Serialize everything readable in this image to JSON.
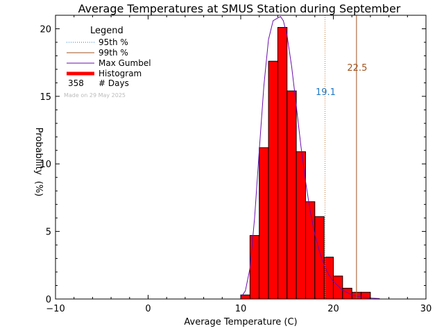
{
  "chart_data": {
    "type": "bar",
    "title": "Average Temperatures at SMUS Station during September",
    "xlabel": "Average Temperature (C)",
    "ylabel": "Probability",
    "ylabel_unit": "(%)",
    "xlim": [
      -10,
      30
    ],
    "ylim": [
      0,
      21
    ],
    "x_ticks": [
      -10,
      0,
      10,
      20,
      30
    ],
    "y_ticks": [
      0,
      5,
      10,
      15,
      20
    ],
    "histogram": {
      "name": "Histogram",
      "color": "#ff0000",
      "bins": [
        {
          "x0": 10,
          "x1": 11,
          "value": 0.3
        },
        {
          "x0": 11,
          "x1": 12,
          "value": 4.7
        },
        {
          "x0": 12,
          "x1": 13,
          "value": 11.2
        },
        {
          "x0": 13,
          "x1": 14,
          "value": 17.6
        },
        {
          "x0": 14,
          "x1": 15,
          "value": 20.1
        },
        {
          "x0": 15,
          "x1": 16,
          "value": 15.4
        },
        {
          "x0": 16,
          "x1": 17,
          "value": 10.9
        },
        {
          "x0": 17,
          "x1": 18,
          "value": 7.2
        },
        {
          "x0": 18,
          "x1": 19,
          "value": 6.1
        },
        {
          "x0": 19,
          "x1": 20,
          "value": 3.1
        },
        {
          "x0": 20,
          "x1": 21,
          "value": 1.7
        },
        {
          "x0": 21,
          "x1": 22,
          "value": 0.8
        },
        {
          "x0": 22,
          "x1": 23,
          "value": 0.5
        },
        {
          "x0": 23,
          "x1": 24,
          "value": 0.5
        }
      ]
    },
    "gumbel_fit": {
      "name": "Max Gumbel",
      "color": "#6a0dad",
      "x": [
        10,
        10.5,
        11,
        11.5,
        12,
        12.5,
        13,
        13.5,
        14,
        14.3,
        14.6,
        15,
        15.5,
        16,
        16.5,
        17,
        17.5,
        18,
        18.5,
        19,
        19.5,
        20,
        21,
        22,
        23,
        24,
        25
      ],
      "y": [
        0.1,
        0.6,
        2.3,
        6.0,
        11.0,
        15.8,
        19.2,
        20.6,
        20.8,
        20.9,
        20.6,
        19.5,
        17.2,
        14.3,
        11.3,
        8.7,
        6.5,
        4.8,
        3.5,
        2.5,
        1.8,
        1.3,
        0.65,
        0.3,
        0.15,
        0.07,
        0.03
      ]
    },
    "percentiles": [
      {
        "name": "95th %",
        "value": 19.1,
        "label": "19.1",
        "style": "dotted",
        "color": "#c87a3c",
        "label_color": "#1e78c8"
      },
      {
        "name": "99th %",
        "value": 22.5,
        "label": "22.5",
        "style": "solid",
        "color": "#a0521e",
        "label_color": "#a0521e"
      }
    ],
    "legend": {
      "title": "Legend",
      "placement": "top-left",
      "entries": [
        {
          "label": "95th %",
          "kind": "dotted",
          "color": "#1e78c8"
        },
        {
          "label": "99th %",
          "kind": "solid",
          "color": "#a0521e"
        },
        {
          "label": "Max Gumbel",
          "kind": "solid",
          "color": "#6a0dad"
        },
        {
          "label": "Histogram",
          "kind": "thick",
          "color": "#ff0000"
        }
      ],
      "days_count": "358",
      "days_label": "# Days"
    },
    "made_on": "Made on 29 May 2025"
  }
}
